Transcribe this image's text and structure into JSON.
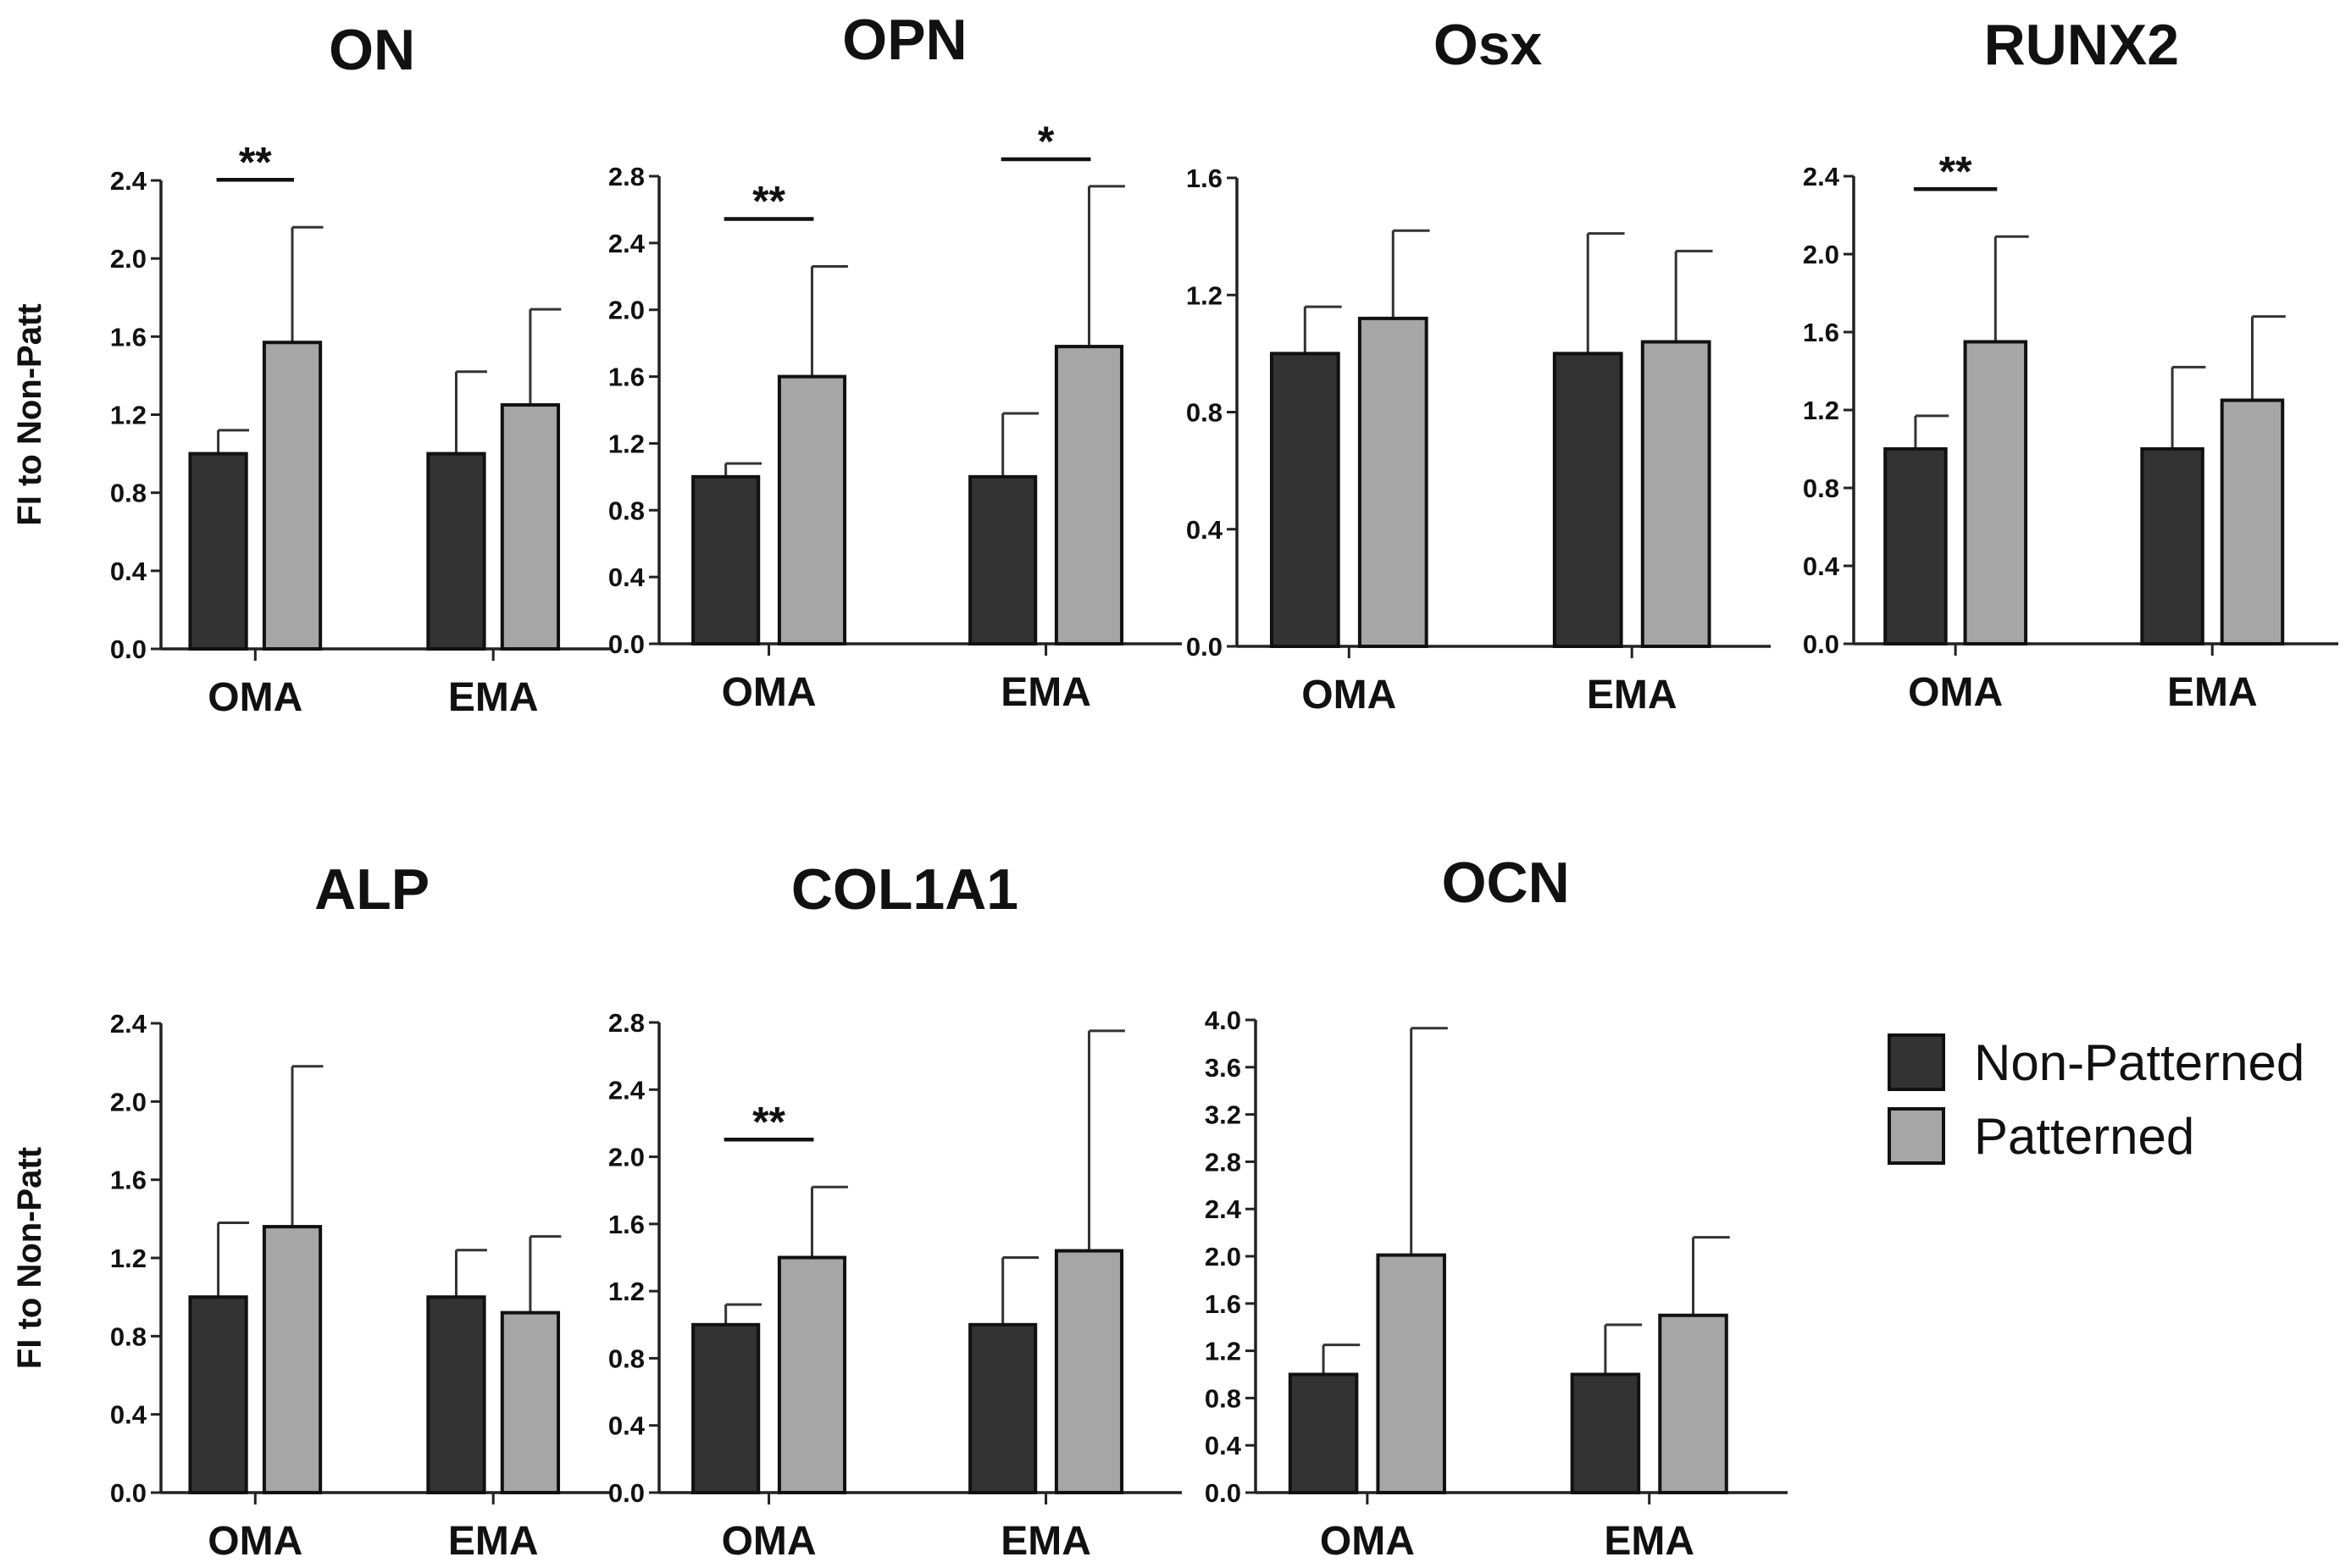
{
  "chart_data": [
    {
      "type": "bar",
      "title": "ON",
      "ylabel": "FI to Non-Patt",
      "ylim": [
        0,
        2.4
      ],
      "yticks": [
        "0.0",
        "0.4",
        "0.8",
        "1.2",
        "1.6",
        "2.0",
        "2.4"
      ],
      "categories": [
        "OMA",
        "EMA"
      ],
      "series": [
        {
          "name": "Non-Patterned",
          "values": [
            1.0,
            1.0
          ],
          "errors": [
            0.12,
            0.42
          ]
        },
        {
          "name": "Patterned",
          "values": [
            1.57,
            1.25
          ],
          "errors": [
            0.59,
            0.49
          ]
        }
      ],
      "significance": [
        {
          "category": "OMA",
          "label": "**"
        }
      ]
    },
    {
      "type": "bar",
      "title": "OPN",
      "ylabel": "",
      "ylim": [
        0,
        2.8
      ],
      "yticks": [
        "0.0",
        "0.4",
        "0.8",
        "1.2",
        "1.6",
        "2.0",
        "2.4",
        "2.8"
      ],
      "categories": [
        "OMA",
        "EMA"
      ],
      "series": [
        {
          "name": "Non-Patterned",
          "values": [
            1.0,
            1.0
          ],
          "errors": [
            0.08,
            0.38
          ]
        },
        {
          "name": "Patterned",
          "values": [
            1.6,
            1.78
          ],
          "errors": [
            0.66,
            0.96
          ]
        }
      ],
      "significance": [
        {
          "category": "OMA",
          "label": "**"
        },
        {
          "category": "EMA",
          "label": "*"
        }
      ]
    },
    {
      "type": "bar",
      "title": "Osx",
      "ylabel": "",
      "ylim": [
        0,
        1.6
      ],
      "yticks": [
        "0.0",
        "0.4",
        "0.8",
        "1.2",
        "1.6"
      ],
      "categories": [
        "OMA",
        "EMA"
      ],
      "series": [
        {
          "name": "Non-Patterned",
          "values": [
            1.0,
            1.0
          ],
          "errors": [
            0.16,
            0.41
          ]
        },
        {
          "name": "Patterned",
          "values": [
            1.12,
            1.04
          ],
          "errors": [
            0.3,
            0.31
          ]
        }
      ],
      "significance": []
    },
    {
      "type": "bar",
      "title": "RUNX2",
      "ylabel": "",
      "ylim": [
        0,
        2.4
      ],
      "yticks": [
        "0.0",
        "0.4",
        "0.8",
        "1.2",
        "1.6",
        "2.0",
        "2.4"
      ],
      "categories": [
        "OMA",
        "EMA"
      ],
      "series": [
        {
          "name": "Non-Patterned",
          "values": [
            1.0,
            1.0
          ],
          "errors": [
            0.17,
            0.42
          ]
        },
        {
          "name": "Patterned",
          "values": [
            1.55,
            1.25
          ],
          "errors": [
            0.54,
            0.43
          ]
        }
      ],
      "significance": [
        {
          "category": "OMA",
          "label": "**"
        }
      ]
    },
    {
      "type": "bar",
      "title": "ALP",
      "ylabel": "FI to Non-Patt",
      "ylim": [
        0,
        2.4
      ],
      "yticks": [
        "0.0",
        "0.4",
        "0.8",
        "1.2",
        "1.6",
        "2.0",
        "2.4"
      ],
      "categories": [
        "OMA",
        "EMA"
      ],
      "series": [
        {
          "name": "Non-Patterned",
          "values": [
            1.0,
            1.0
          ],
          "errors": [
            0.38,
            0.24
          ]
        },
        {
          "name": "Patterned",
          "values": [
            1.36,
            0.92
          ],
          "errors": [
            0.82,
            0.39
          ]
        }
      ],
      "significance": []
    },
    {
      "type": "bar",
      "title": "COL1A1",
      "ylabel": "",
      "ylim": [
        0,
        2.8
      ],
      "yticks": [
        "0.0",
        "0.4",
        "0.8",
        "1.2",
        "1.6",
        "2.0",
        "2.4",
        "2.8"
      ],
      "categories": [
        "OMA",
        "EMA"
      ],
      "series": [
        {
          "name": "Non-Patterned",
          "values": [
            1.0,
            1.0
          ],
          "errors": [
            0.12,
            0.4
          ]
        },
        {
          "name": "Patterned",
          "values": [
            1.4,
            1.44
          ],
          "errors": [
            0.42,
            1.31
          ]
        }
      ],
      "significance": [
        {
          "category": "OMA",
          "label": "**"
        }
      ]
    },
    {
      "type": "bar",
      "title": "OCN",
      "ylabel": "",
      "ylim": [
        0,
        4.0
      ],
      "yticks": [
        "0.0",
        "0.4",
        "0.8",
        "1.2",
        "1.6",
        "2.0",
        "2.4",
        "2.8",
        "3.2",
        "3.6",
        "4.0"
      ],
      "categories": [
        "OMA",
        "EMA"
      ],
      "series": [
        {
          "name": "Non-Patterned",
          "values": [
            1.0,
            1.0
          ],
          "errors": [
            0.25,
            0.42
          ]
        },
        {
          "name": "Patterned",
          "values": [
            2.01,
            1.5
          ],
          "errors": [
            1.92,
            0.66
          ]
        }
      ],
      "significance": []
    }
  ],
  "legend": {
    "items": [
      {
        "label": "Non-Patterned",
        "color": "#333333"
      },
      {
        "label": "Patterned",
        "color": "#a6a6a6"
      }
    ]
  },
  "colors": {
    "non_patterned": "#333333",
    "patterned": "#a6a6a6",
    "axis": "#222222"
  }
}
